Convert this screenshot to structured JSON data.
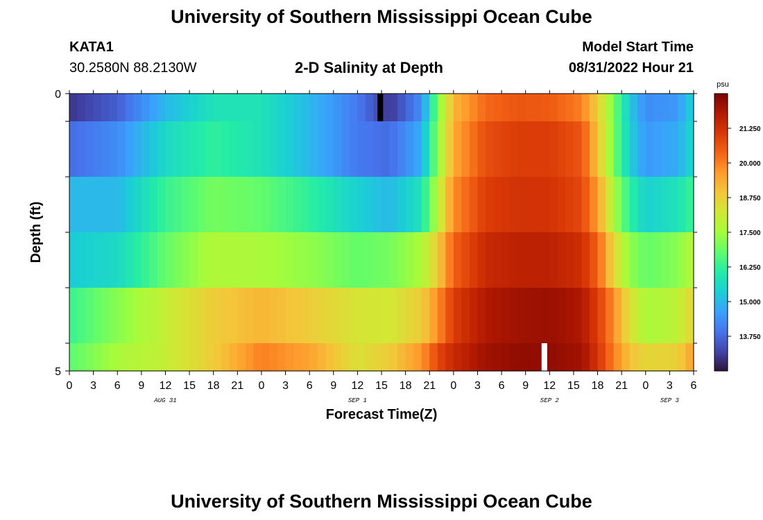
{
  "header": {
    "title": "University of Southern Mississippi Ocean Cube",
    "station": "KATA1",
    "coordinates": "30.2580N  88.2130W",
    "subtitle": "2-D Salinity at Depth",
    "model_start_label": "Model Start Time",
    "model_start_value": "08/31/2022 Hour 21"
  },
  "footer": {
    "title": "University of Southern Mississippi Ocean Cube"
  },
  "chart_data": {
    "type": "heatmap",
    "title": "2-D Salinity at Depth",
    "xlabel": "Forecast Time(Z)",
    "ylabel": "Depth (ft)",
    "colorbar_unit": "psu",
    "colorbar_ticks": [
      "21.250",
      "20.000",
      "18.750",
      "17.500",
      "16.250",
      "15.000",
      "13.750"
    ],
    "colorbar_range": [
      12.5,
      22.5
    ],
    "x_tick_labels": [
      "0",
      "3",
      "6",
      "9",
      "12",
      "15",
      "18",
      "21",
      "0",
      "3",
      "6",
      "9",
      "12",
      "15",
      "18",
      "21",
      "0",
      "3",
      "6",
      "9",
      "12",
      "15",
      "18",
      "21",
      "0",
      "3",
      "6"
    ],
    "x_range_hours": [
      0,
      78
    ],
    "date_labels": [
      {
        "label": "AUG 31",
        "hour": 12
      },
      {
        "label": "SEP 1",
        "hour": 36
      },
      {
        "label": "SEP 2",
        "hour": 60
      },
      {
        "label": "SEP 3",
        "hour": 75
      }
    ],
    "y_tick_labels": [
      {
        "label": "0",
        "depth": 0
      },
      {
        "label": "5",
        "depth": 5
      }
    ],
    "y_range_ft": [
      0,
      5
    ],
    "layers": [
      {
        "depth_top": 0,
        "depth_bottom": 0.5,
        "key_hours": [
          0,
          6,
          12,
          18,
          24,
          30,
          36,
          40,
          44,
          46,
          48,
          52,
          56,
          60,
          64,
          66,
          68,
          70,
          72,
          76,
          78
        ],
        "key_values": [
          13.0,
          13.6,
          15.0,
          15.8,
          15.8,
          15.0,
          14.0,
          13.0,
          14.3,
          17.0,
          19.2,
          20.3,
          20.6,
          20.5,
          20.0,
          18.8,
          17.0,
          15.3,
          14.3,
          14.5,
          15.5
        ]
      },
      {
        "depth_top": 0.5,
        "depth_bottom": 1.5,
        "key_hours": [
          0,
          6,
          12,
          18,
          24,
          30,
          36,
          40,
          44,
          46,
          48,
          52,
          56,
          60,
          64,
          66,
          68,
          70,
          72,
          76,
          78
        ],
        "key_values": [
          13.8,
          14.3,
          15.6,
          16.2,
          15.8,
          15.0,
          14.0,
          13.8,
          14.8,
          17.2,
          19.4,
          20.7,
          21.0,
          21.0,
          20.6,
          19.0,
          17.0,
          15.4,
          14.5,
          14.8,
          15.6
        ]
      },
      {
        "depth_top": 1.5,
        "depth_bottom": 2.5,
        "key_hours": [
          0,
          6,
          12,
          18,
          24,
          30,
          36,
          40,
          44,
          46,
          48,
          52,
          56,
          60,
          64,
          66,
          68,
          70,
          72,
          76,
          78
        ],
        "key_values": [
          15.0,
          15.0,
          16.3,
          17.0,
          16.8,
          16.2,
          15.4,
          15.0,
          15.8,
          17.8,
          19.8,
          21.0,
          21.2,
          21.2,
          20.8,
          19.6,
          17.6,
          16.2,
          15.4,
          15.8,
          16.4
        ]
      },
      {
        "depth_top": 2.5,
        "depth_bottom": 3.5,
        "key_hours": [
          0,
          6,
          12,
          18,
          24,
          30,
          36,
          40,
          44,
          46,
          48,
          52,
          56,
          60,
          64,
          66,
          68,
          70,
          72,
          76,
          78
        ],
        "key_values": [
          15.3,
          15.6,
          16.8,
          17.7,
          17.6,
          17.3,
          16.8,
          17.0,
          17.6,
          18.8,
          20.4,
          21.4,
          21.6,
          21.6,
          21.3,
          20.4,
          18.6,
          17.3,
          16.8,
          17.2,
          17.8
        ]
      },
      {
        "depth_top": 3.5,
        "depth_bottom": 4.5,
        "key_hours": [
          0,
          6,
          12,
          18,
          24,
          30,
          36,
          40,
          44,
          46,
          48,
          52,
          56,
          60,
          64,
          66,
          68,
          70,
          72,
          76,
          78
        ],
        "key_values": [
          16.3,
          17.2,
          18.0,
          18.8,
          19.2,
          18.8,
          18.3,
          18.2,
          18.8,
          19.8,
          21.0,
          21.8,
          22.0,
          22.1,
          21.8,
          21.0,
          19.8,
          18.4,
          17.6,
          17.9,
          18.7
        ]
      },
      {
        "depth_top": 4.5,
        "depth_bottom": 5,
        "key_hours": [
          0,
          6,
          12,
          18,
          24,
          30,
          36,
          40,
          44,
          46,
          48,
          52,
          56,
          60,
          64,
          66,
          68,
          70,
          72,
          76,
          78
        ],
        "key_values": [
          16.7,
          17.6,
          18.0,
          18.8,
          20.0,
          19.5,
          18.4,
          18.8,
          19.7,
          20.8,
          21.4,
          22.0,
          22.2,
          22.2,
          22.0,
          21.2,
          20.0,
          19.0,
          18.6,
          18.7,
          19.6
        ]
      }
    ],
    "markers": [
      {
        "hour": 38.5,
        "layer": 0,
        "color": "#000000"
      },
      {
        "hour": 59,
        "layer": 5,
        "color": "#ffffff"
      }
    ],
    "colormap": [
      "#30123b",
      "#4145ab",
      "#4675ed",
      "#39a2fc",
      "#1bcfd4",
      "#24eca6",
      "#61fc6c",
      "#a4fc3b",
      "#d1e834",
      "#f3c63a",
      "#fe9b2d",
      "#f36315",
      "#d93806",
      "#b11901",
      "#7a0402"
    ]
  }
}
